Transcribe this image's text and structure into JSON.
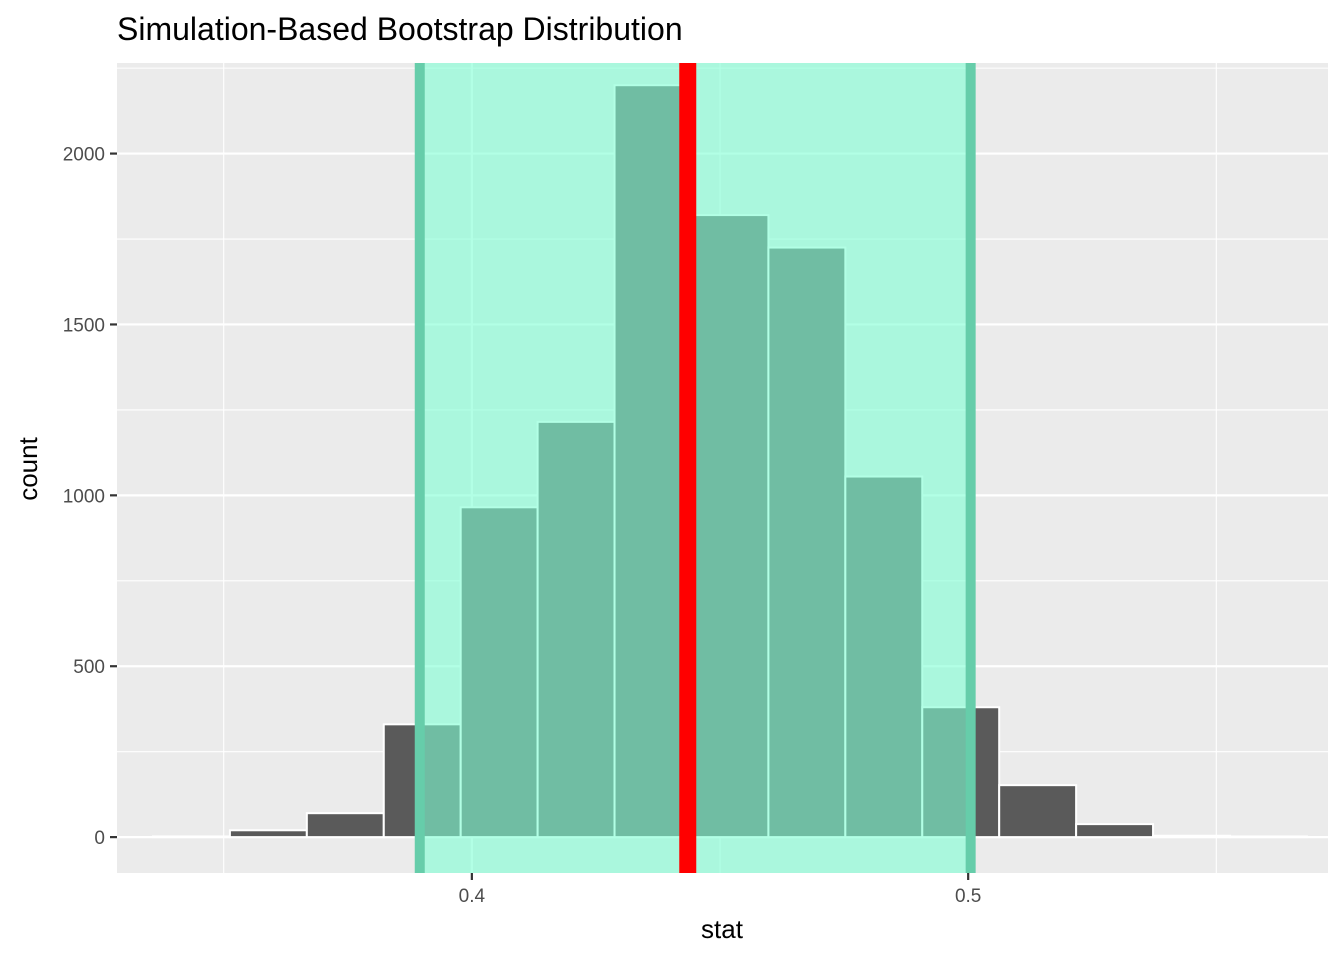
{
  "chart_data": {
    "type": "bar",
    "title": "Simulation-Based Bootstrap Distribution",
    "xlabel": "stat",
    "ylabel": "count",
    "xlim": [
      0.3285,
      0.5725
    ],
    "ylim": [
      -105,
      2265
    ],
    "x_ticks": [
      0.4,
      0.5
    ],
    "x_tick_labels": [
      "0.4",
      "0.5"
    ],
    "y_ticks": [
      0,
      500,
      1000,
      1500,
      2000
    ],
    "y_tick_labels": [
      "0",
      "500",
      "1000",
      "1500",
      "2000"
    ],
    "x_minor_ticks": [
      0.35,
      0.45,
      0.55
    ],
    "y_minor_ticks": [
      250,
      750,
      1250,
      1750,
      2250
    ],
    "grid": true,
    "bin_width": 0.0155,
    "bins": [
      {
        "x": 0.3435,
        "count": 2
      },
      {
        "x": 0.359,
        "count": 20
      },
      {
        "x": 0.3745,
        "count": 70
      },
      {
        "x": 0.39,
        "count": 330
      },
      {
        "x": 0.4055,
        "count": 965
      },
      {
        "x": 0.421,
        "count": 1215
      },
      {
        "x": 0.4365,
        "count": 2200
      },
      {
        "x": 0.452,
        "count": 1820
      },
      {
        "x": 0.4675,
        "count": 1725
      },
      {
        "x": 0.483,
        "count": 1055
      },
      {
        "x": 0.4985,
        "count": 380
      },
      {
        "x": 0.514,
        "count": 152
      },
      {
        "x": 0.5295,
        "count": 38
      },
      {
        "x": 0.545,
        "count": 4
      },
      {
        "x": 0.5605,
        "count": 2
      }
    ],
    "confidence_interval": {
      "lower": 0.3895,
      "upper": 0.5005
    },
    "observed_stat": 0.4435,
    "colors": {
      "bar_fill": "#5a5a5a",
      "bar_outline": "#ffffff",
      "ci_fill": "#7fffd4",
      "ci_fill_opacity": 0.6,
      "ci_line": "#66cdaa",
      "obs_line": "#ff0000",
      "panel_bg": "#ebebeb",
      "grid": "#ffffff"
    }
  }
}
